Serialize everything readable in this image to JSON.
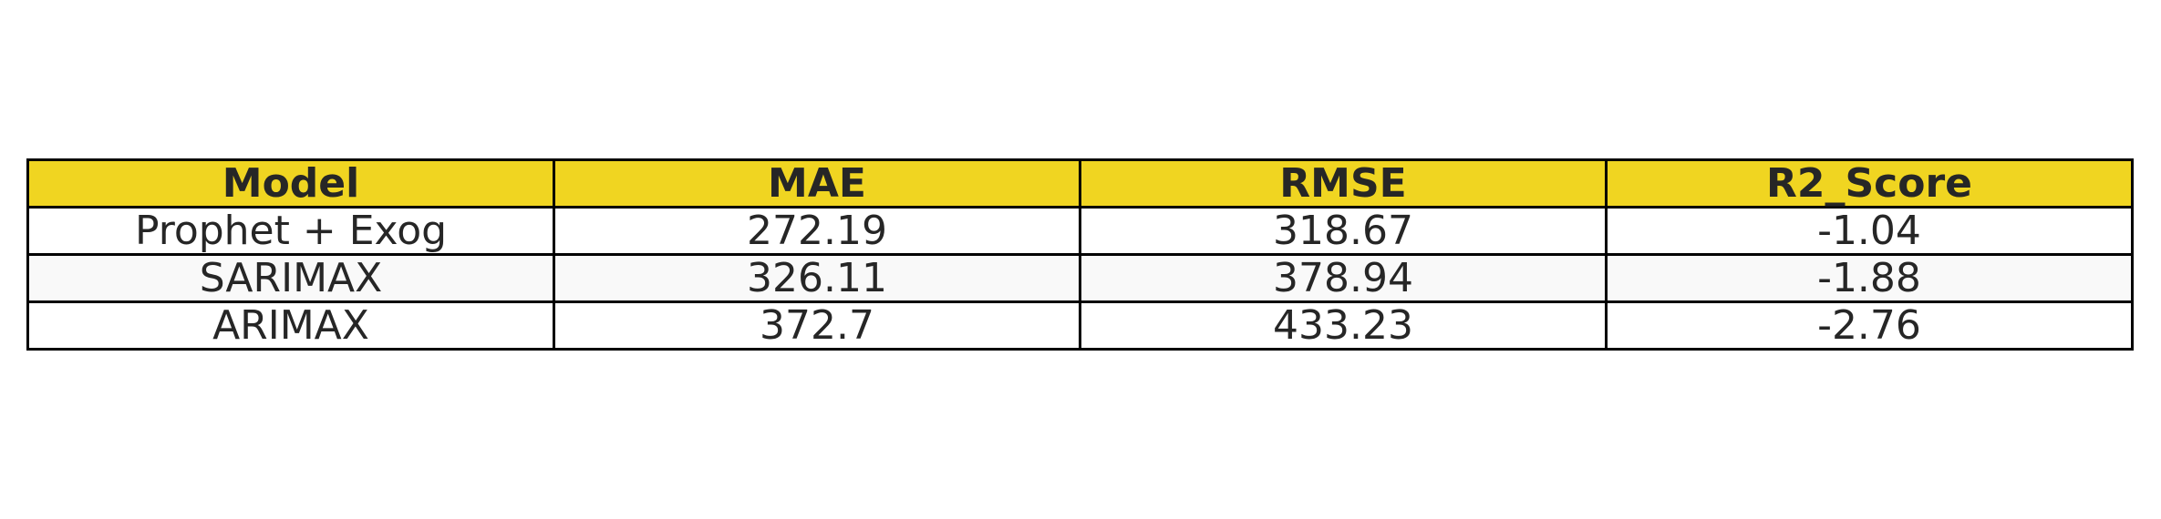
{
  "colors": {
    "header_background": "#f0d521",
    "row_background_odd": "#ffffff",
    "row_background_even": "#f9f9f9",
    "border": "#000000",
    "text": "#262626"
  },
  "chart_data": {
    "type": "table",
    "columns": [
      "Model",
      "MAE",
      "RMSE",
      "R2_Score"
    ],
    "rows": [
      [
        "Prophet + Exog",
        "272.19",
        "318.67",
        "-1.04"
      ],
      [
        "SARIMAX",
        "326.11",
        "378.94",
        "-1.88"
      ],
      [
        "ARIMAX",
        "372.7",
        "433.23",
        "-2.76"
      ]
    ]
  }
}
